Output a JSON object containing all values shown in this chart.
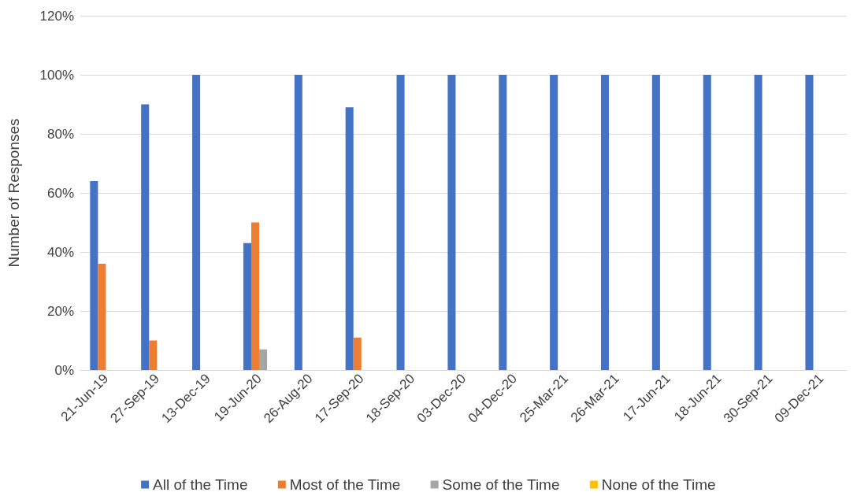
{
  "chart_data": {
    "type": "bar",
    "ylabel": "Number of Responses",
    "categories": [
      "21-Jun-19",
      "27-Sep-19",
      "13-Dec-19",
      "19-Jun-20",
      "26-Aug-20",
      "17-Sep-20",
      "18-Sep-20",
      "03-Dec-20",
      "04-Dec-20",
      "25-Mar-21",
      "26-Mar-21",
      "17-Jun-21",
      "18-Jun-21",
      "30-Sep-21",
      "09-Dec-21"
    ],
    "series": [
      {
        "name": "All of the Time",
        "color": "#4472c4",
        "values": [
          64,
          90,
          100,
          43,
          100,
          89,
          100,
          100,
          100,
          100,
          100,
          100,
          100,
          100,
          100
        ]
      },
      {
        "name": "Most of the Time",
        "color": "#ed7d31",
        "values": [
          36,
          10,
          0,
          50,
          0,
          11,
          0,
          0,
          0,
          0,
          0,
          0,
          0,
          0,
          0
        ]
      },
      {
        "name": "Some of the Time",
        "color": "#a5a5a5",
        "values": [
          0,
          0,
          0,
          7,
          0,
          0,
          0,
          0,
          0,
          0,
          0,
          0,
          0,
          0,
          0
        ]
      },
      {
        "name": "None of the Time",
        "color": "#ffc000",
        "values": [
          0,
          0,
          0,
          0,
          0,
          0,
          0,
          0,
          0,
          0,
          0,
          0,
          0,
          0,
          0
        ]
      }
    ],
    "ylim": [
      0,
      120
    ],
    "yticks": [
      {
        "value": 0,
        "label": "0%"
      },
      {
        "value": 20,
        "label": "20%"
      },
      {
        "value": 40,
        "label": "40%"
      },
      {
        "value": 60,
        "label": "60%"
      },
      {
        "value": 80,
        "label": "80%"
      },
      {
        "value": 100,
        "label": "100%"
      },
      {
        "value": 120,
        "label": "120%"
      }
    ],
    "grid": "y",
    "legend": "bottom"
  }
}
